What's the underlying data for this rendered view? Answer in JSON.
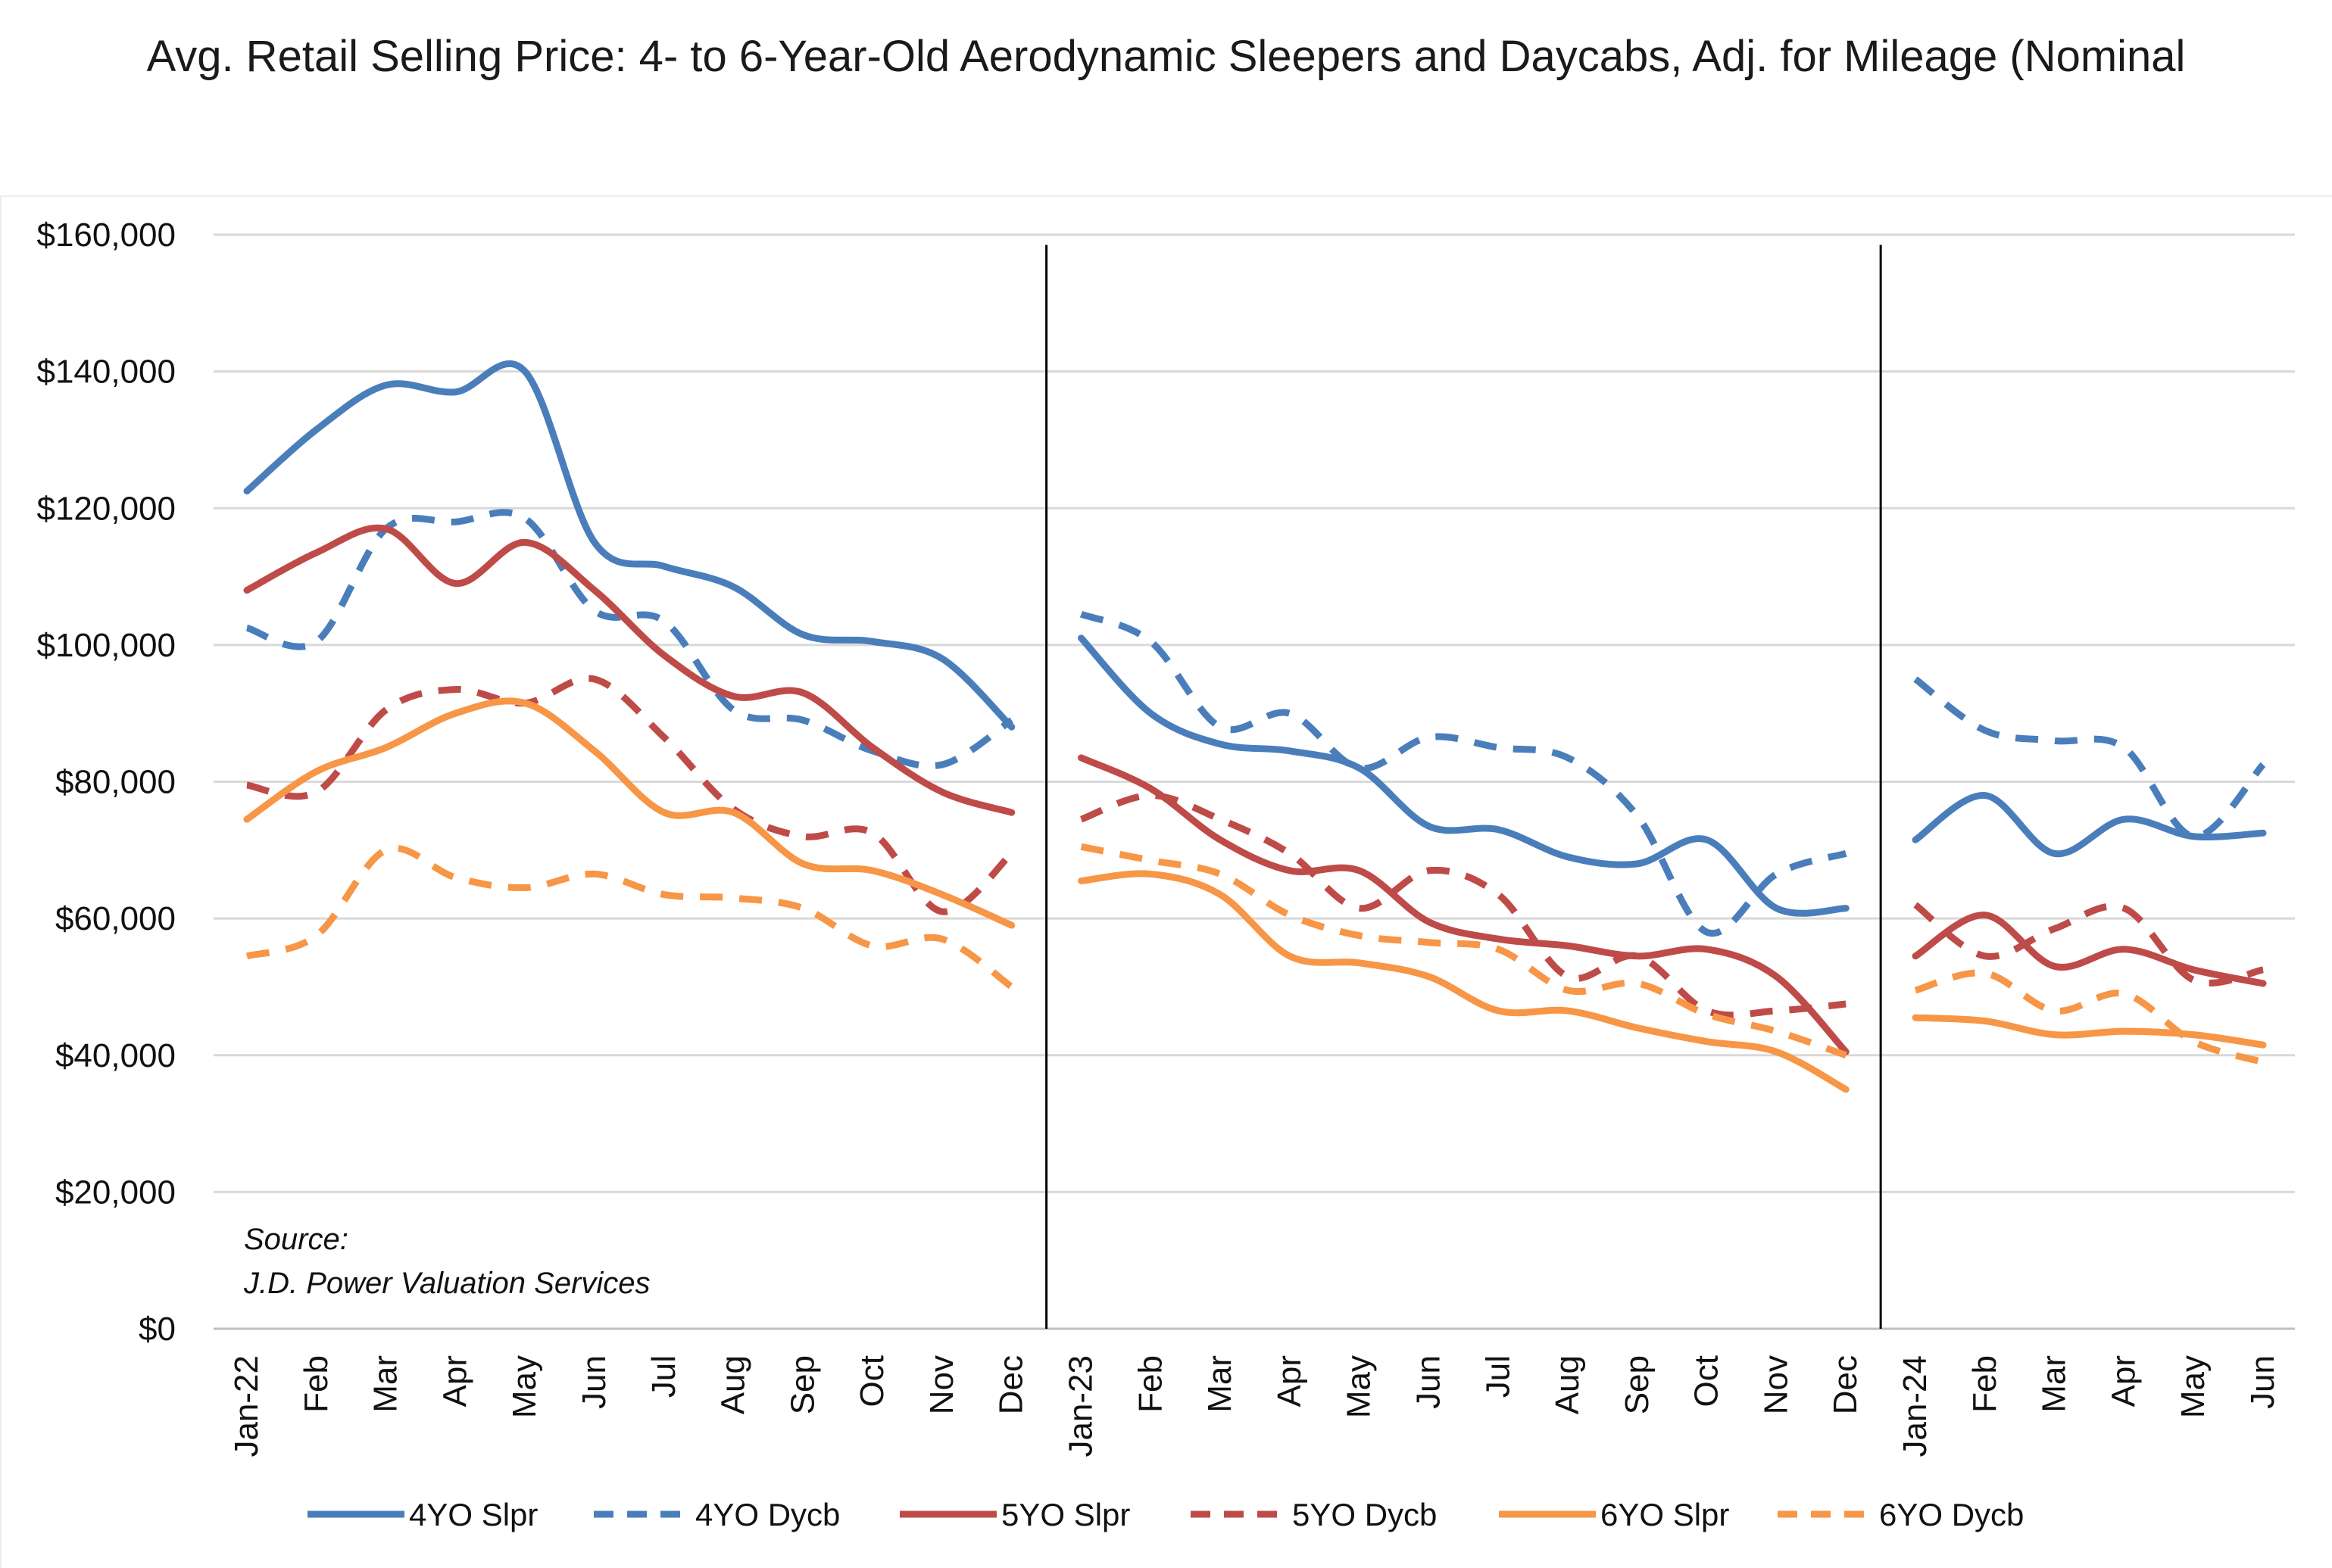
{
  "chart_data": {
    "type": "line",
    "title": "Avg. Retail Selling Price: 4- to 6-Year-Old Aerodynamic Sleepers and Daycabs, Adj. for Mileage (Nominal",
    "xlabel": "",
    "ylabel": "",
    "ylim": [
      0,
      160000
    ],
    "yticks": [
      "$0",
      "$20,000",
      "$40,000",
      "$60,000",
      "$80,000",
      "$100,000",
      "$120,000",
      "$140,000",
      "$160,000"
    ],
    "yticks_values": [
      0,
      20000,
      40000,
      60000,
      80000,
      100000,
      120000,
      140000,
      160000
    ],
    "grid": "horizontal",
    "legend": "bottom",
    "source_lines": [
      "Source:",
      "J.D. Power Valuation Services"
    ],
    "segments": [
      {
        "categories": [
          "Jan-22",
          "Feb",
          "Mar",
          "Apr",
          "May",
          "Jun",
          "Jul",
          "Aug",
          "Sep",
          "Oct",
          "Nov",
          "Dec"
        ]
      },
      {
        "categories": [
          "Jan-23",
          "Feb",
          "Mar",
          "Apr",
          "May",
          "Jun",
          "Jul",
          "Aug",
          "Sep",
          "Oct",
          "Nov",
          "Dec"
        ]
      },
      {
        "categories": [
          "Jan-24",
          "Feb",
          "Mar",
          "Apr",
          "May",
          "Jun"
        ]
      }
    ],
    "series": [
      {
        "name": "4YO Slpr",
        "color": "#4A7EBB",
        "dash": "solid",
        "values": [
          [
            122500,
            131500,
            138000,
            137000,
            140000,
            115000,
            111500,
            108500,
            101500,
            100500,
            98000,
            88000
          ],
          [
            101000,
            90000,
            85500,
            84500,
            82000,
            73500,
            73000,
            69000,
            68000,
            71500,
            61500,
            61500
          ],
          [
            71500,
            78000,
            69500,
            74500,
            72000,
            72500
          ]
        ]
      },
      {
        "name": "4YO Dycb",
        "color": "#4A7EBB",
        "dash": "dashed",
        "values": [
          [
            102500,
            100500,
            117000,
            118000,
            118500,
            105000,
            103500,
            90500,
            89000,
            84500,
            82500,
            89000
          ],
          [
            104500,
            100500,
            88000,
            90000,
            82000,
            86500,
            85000,
            83500,
            75000,
            58000,
            66500,
            69500
          ],
          [
            95000,
            87500,
            86000,
            85000,
            72000,
            82500
          ]
        ]
      },
      {
        "name": "5YO Slpr",
        "color": "#BE4B48",
        "dash": "solid",
        "values": [
          [
            108000,
            113500,
            117000,
            109000,
            115000,
            108000,
            98500,
            92500,
            93000,
            85000,
            78500,
            75500
          ],
          [
            83500,
            79000,
            71500,
            67000,
            67000,
            59500,
            57000,
            56000,
            54500,
            55500,
            51500,
            40500
          ],
          [
            54500,
            60500,
            53000,
            55500,
            52500,
            50500
          ]
        ]
      },
      {
        "name": "5YO Dycb",
        "color": "#BE4B48",
        "dash": "dashed",
        "values": [
          [
            79500,
            78500,
            90500,
            93500,
            91500,
            95000,
            86500,
            76000,
            72000,
            72500,
            61000,
            69500
          ],
          [
            74500,
            78000,
            74500,
            69500,
            61500,
            67000,
            63500,
            51500,
            54500,
            46500,
            46500,
            47500
          ],
          [
            62000,
            54500,
            58500,
            61500,
            51000,
            52500
          ]
        ]
      },
      {
        "name": "6YO Slpr",
        "color": "#F79646",
        "dash": "solid",
        "values": [
          [
            74500,
            81500,
            85000,
            90000,
            91500,
            84500,
            75500,
            75500,
            68000,
            67000,
            63500,
            59000
          ],
          [
            65500,
            66500,
            63500,
            54500,
            53500,
            51500,
            46500,
            46500,
            44000,
            42000,
            40500,
            35000
          ],
          [
            45500,
            45000,
            43000,
            43500,
            43000,
            41500
          ]
        ]
      },
      {
        "name": "6YO Dycb",
        "color": "#F79646",
        "dash": "dashed",
        "values": [
          [
            54500,
            57500,
            70000,
            66000,
            64500,
            66500,
            63500,
            63000,
            61500,
            56000,
            57000,
            50000
          ],
          [
            70500,
            68500,
            66500,
            60500,
            57500,
            56500,
            55500,
            49500,
            50500,
            46000,
            43500,
            40000
          ],
          [
            49500,
            52000,
            46500,
            49000,
            42000,
            39000
          ]
        ]
      }
    ]
  }
}
